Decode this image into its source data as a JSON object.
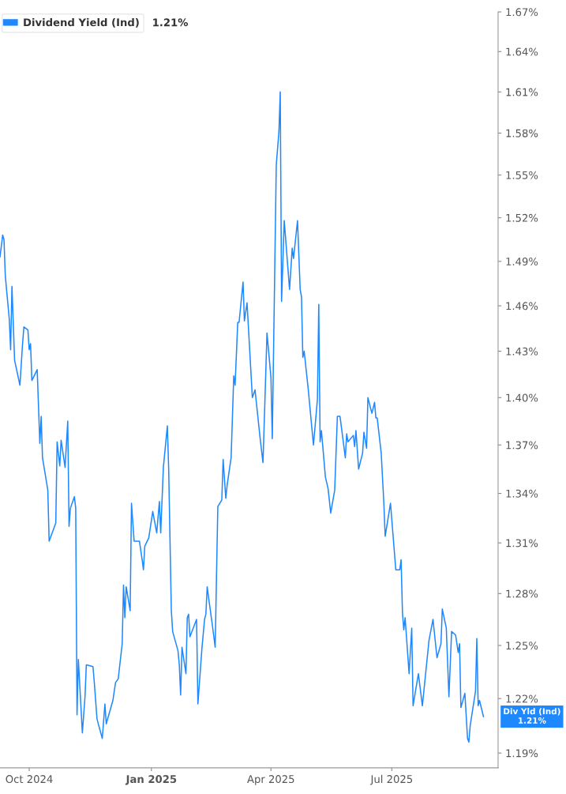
{
  "chart_data": {
    "type": "line",
    "log": true,
    "grid": false,
    "legend": "top left",
    "marker": "none",
    "line_style": "solid",
    "xlim": [
      "2024-09-09",
      "2025-09-19"
    ],
    "xticks": [
      {
        "value": "2024-10-01",
        "label": "Oct 2024"
      },
      {
        "value": "2025-01-01",
        "label": "Jan 2025"
      },
      {
        "value": "2025-04-01",
        "label": "Apr 2025"
      },
      {
        "value": "2025-07-01",
        "label": "Jul 2025"
      }
    ],
    "ylim": [
      1.182,
      1.67
    ],
    "yticks": [
      {
        "value": 1.19,
        "label": "1.19%"
      },
      {
        "value": 1.22,
        "label": "1.22%"
      },
      {
        "value": 1.25,
        "label": "1.25%"
      },
      {
        "value": 1.28,
        "label": "1.28%"
      },
      {
        "value": 1.31,
        "label": "1.31%"
      },
      {
        "value": 1.34,
        "label": "1.34%"
      },
      {
        "value": 1.37,
        "label": "1.37%"
      },
      {
        "value": 1.4,
        "label": "1.40%"
      },
      {
        "value": 1.43,
        "label": "1.43%"
      },
      {
        "value": 1.46,
        "label": "1.46%"
      },
      {
        "value": 1.49,
        "label": "1.49%"
      },
      {
        "value": 1.52,
        "label": "1.52%"
      },
      {
        "value": 1.55,
        "label": "1.55%"
      },
      {
        "value": 1.58,
        "label": "1.58%"
      },
      {
        "value": 1.61,
        "label": "1.61%"
      },
      {
        "value": 1.64,
        "label": "1.64%"
      },
      {
        "value": 1.67,
        "label": "1.67%"
      }
    ],
    "annotations": [
      "1.21%",
      {
        "text": "Div Yld (Ind)\n1.21%",
        "x": "2025-09-08",
        "y": 1.21
      }
    ],
    "x": [
      "2024-09-09",
      "2024-09-11",
      "2024-09-12",
      "2024-09-13",
      "2024-09-16",
      "2024-09-17",
      "2024-09-18",
      "2024-09-20",
      "2024-09-24",
      "2024-09-26",
      "2024-09-27",
      "2024-09-30",
      "2024-10-01",
      "2024-10-02",
      "2024-10-03",
      "2024-10-07",
      "2024-10-09",
      "2024-10-10",
      "2024-10-11",
      "2024-10-15",
      "2024-10-16",
      "2024-10-21",
      "2024-10-22",
      "2024-10-24",
      "2024-10-25",
      "2024-10-28",
      "2024-10-30",
      "2024-10-31",
      "2024-11-01",
      "2024-11-04",
      "2024-11-05",
      "2024-11-06",
      "2024-11-07",
      "2024-11-10",
      "2024-11-12",
      "2024-11-13",
      "2024-11-18",
      "2024-11-19",
      "2024-11-21",
      "2024-11-22",
      "2024-11-25",
      "2024-11-27",
      "2024-11-28",
      "2024-12-03",
      "2024-12-05",
      "2024-12-07",
      "2024-12-10",
      "2024-12-11",
      "2024-12-12",
      "2024-12-13",
      "2024-12-16",
      "2024-12-17",
      "2024-12-19",
      "2024-12-23",
      "2024-12-25",
      "2024-12-26",
      "2024-12-27",
      "2024-12-30",
      "2025-01-02",
      "2025-01-05",
      "2025-01-07",
      "2025-01-08",
      "2025-01-10",
      "2025-01-13",
      "2025-01-14",
      "2025-01-16",
      "2025-01-17",
      "2025-01-21",
      "2025-01-22",
      "2025-01-23",
      "2025-01-24",
      "2025-01-27",
      "2025-01-28",
      "2025-01-29",
      "2025-01-30",
      "2025-02-04",
      "2025-02-05",
      "2025-02-08",
      "2025-02-10",
      "2025-02-11",
      "2025-02-12",
      "2025-02-13",
      "2025-02-16",
      "2025-02-18",
      "2025-02-20",
      "2025-02-23",
      "2025-02-24",
      "2025-02-26",
      "2025-02-27",
      "2025-03-02",
      "2025-03-04",
      "2025-03-05",
      "2025-03-07",
      "2025-03-08",
      "2025-03-11",
      "2025-03-12",
      "2025-03-14",
      "2025-03-18",
      "2025-03-20",
      "2025-03-24",
      "2025-03-26",
      "2025-03-28",
      "2025-03-29",
      "2025-04-01",
      "2025-04-02",
      "2025-04-05",
      "2025-04-07",
      "2025-04-08",
      "2025-04-09",
      "2025-04-11",
      "2025-04-15",
      "2025-04-17",
      "2025-04-18",
      "2025-04-21",
      "2025-04-23",
      "2025-04-24",
      "2025-04-25",
      "2025-04-26",
      "2025-04-29",
      "2025-05-03",
      "2025-05-06",
      "2025-05-07",
      "2025-05-08",
      "2025-05-09",
      "2025-05-12",
      "2025-05-14",
      "2025-05-16",
      "2025-05-19",
      "2025-05-21",
      "2025-05-23",
      "2025-05-27",
      "2025-05-28",
      "2025-05-29",
      "2025-06-02",
      "2025-06-03",
      "2025-06-04",
      "2025-06-06",
      "2025-06-09",
      "2025-06-10",
      "2025-06-12",
      "2025-06-13",
      "2025-06-16",
      "2025-06-18",
      "2025-06-19",
      "2025-06-20",
      "2025-06-23",
      "2025-06-25",
      "2025-06-26",
      "2025-06-30",
      "2025-07-04",
      "2025-07-07",
      "2025-07-08",
      "2025-07-09",
      "2025-07-10",
      "2025-07-11",
      "2025-07-14",
      "2025-07-16",
      "2025-07-17",
      "2025-07-21",
      "2025-07-24",
      "2025-07-29",
      "2025-08-01",
      "2025-08-04",
      "2025-08-07",
      "2025-08-08",
      "2025-08-11",
      "2025-08-13",
      "2025-08-15",
      "2025-08-18",
      "2025-08-20",
      "2025-08-21",
      "2025-08-22",
      "2025-08-25",
      "2025-08-27",
      "2025-08-28",
      "2025-08-29",
      "2025-09-02",
      "2025-09-03",
      "2025-09-04",
      "2025-09-05",
      "2025-09-08"
    ],
    "series": [
      {
        "name": "Dividend Yield (Ind)",
        "color": "#1e88ff",
        "values": [
          1.493,
          1.508,
          1.505,
          1.48,
          1.451,
          1.431,
          1.473,
          1.424,
          1.408,
          1.435,
          1.446,
          1.444,
          1.431,
          1.435,
          1.411,
          1.418,
          1.371,
          1.388,
          1.362,
          1.342,
          1.311,
          1.322,
          1.372,
          1.357,
          1.373,
          1.356,
          1.385,
          1.32,
          1.331,
          1.338,
          1.331,
          1.211,
          1.242,
          1.201,
          1.221,
          1.239,
          1.238,
          1.229,
          1.209,
          1.206,
          1.198,
          1.217,
          1.206,
          1.219,
          1.229,
          1.231,
          1.251,
          1.285,
          1.266,
          1.284,
          1.27,
          1.334,
          1.311,
          1.311,
          1.3,
          1.294,
          1.308,
          1.313,
          1.329,
          1.316,
          1.335,
          1.316,
          1.356,
          1.382,
          1.355,
          1.27,
          1.258,
          1.247,
          1.239,
          1.222,
          1.249,
          1.234,
          1.266,
          1.268,
          1.255,
          1.265,
          1.217,
          1.248,
          1.265,
          1.268,
          1.284,
          1.278,
          1.261,
          1.249,
          1.332,
          1.336,
          1.361,
          1.337,
          1.345,
          1.362,
          1.414,
          1.408,
          1.449,
          1.449,
          1.476,
          1.45,
          1.462,
          1.4,
          1.405,
          1.373,
          1.359,
          1.413,
          1.442,
          1.413,
          1.374,
          1.557,
          1.581,
          1.61,
          1.463,
          1.518,
          1.471,
          1.499,
          1.492,
          1.518,
          1.471,
          1.466,
          1.426,
          1.43,
          1.406,
          1.37,
          1.399,
          1.461,
          1.372,
          1.379,
          1.35,
          1.343,
          1.328,
          1.342,
          1.388,
          1.388,
          1.362,
          1.377,
          1.372,
          1.376,
          1.369,
          1.379,
          1.355,
          1.365,
          1.378,
          1.368,
          1.4,
          1.39,
          1.397,
          1.387,
          1.387,
          1.365,
          1.334,
          1.314,
          1.334,
          1.294,
          1.294,
          1.3,
          1.269,
          1.259,
          1.266,
          1.234,
          1.26,
          1.216,
          1.234,
          1.216,
          1.253,
          1.265,
          1.243,
          1.251,
          1.271,
          1.26,
          1.221,
          1.258,
          1.256,
          1.246,
          1.251,
          1.215,
          1.223,
          1.198,
          1.196,
          1.205,
          1.224,
          1.254,
          1.216,
          1.219,
          1.21
        ]
      }
    ]
  }
}
